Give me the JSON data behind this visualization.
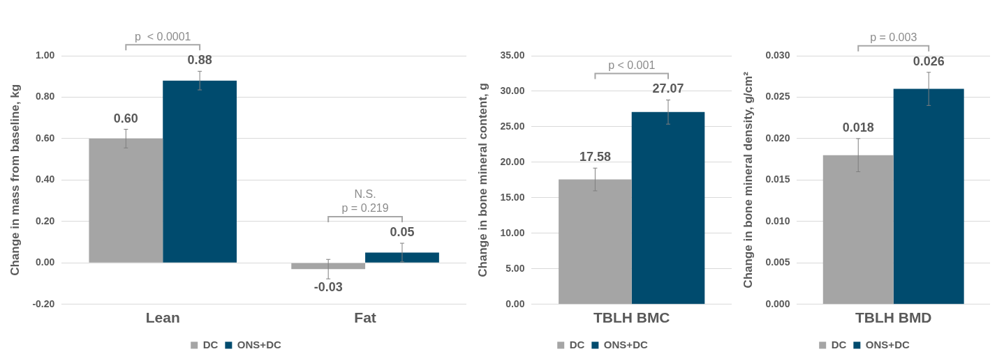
{
  "chart_data": [
    {
      "type": "bar",
      "categories": [
        "Lean",
        "Fat"
      ],
      "ylabel": "Change in mass from baseline, kg",
      "ylim": [
        -0.2,
        1.0
      ],
      "yticks": [
        {
          "value": -0.2,
          "label": "-0.20"
        },
        {
          "value": 0,
          "label": "0.00"
        },
        {
          "value": 0.2,
          "label": "0.20"
        },
        {
          "value": 0.4,
          "label": "0.40"
        },
        {
          "value": 0.6,
          "label": "0.60"
        },
        {
          "value": 0.8,
          "label": "0.80"
        },
        {
          "value": 1.0,
          "label": "1.00"
        }
      ],
      "grid": "y",
      "legend": "bottom",
      "series": [
        {
          "name": "DC",
          "color": "#a5a5a5",
          "values": [
            0.6,
            -0.03
          ],
          "errors": [
            0.045,
            0.047
          ],
          "value_labels": [
            "0.60",
            "-0.03"
          ]
        },
        {
          "name": "ONS+DC",
          "color": "#004b6e",
          "values": [
            0.88,
            0.05
          ],
          "errors": [
            0.045,
            0.045
          ],
          "value_labels": [
            "0.88",
            "0.05"
          ]
        }
      ],
      "annotations": [
        "p  < 0.0001",
        "N.S.",
        "p = 0.219"
      ]
    },
    {
      "type": "bar",
      "categories": [
        "TBLH BMC"
      ],
      "ylabel": "Change in bone mineral content, g",
      "ylim": [
        0,
        35
      ],
      "yticks": [
        {
          "value": 0,
          "label": "0.00"
        },
        {
          "value": 5,
          "label": "5.00"
        },
        {
          "value": 10,
          "label": "10.00"
        },
        {
          "value": 15,
          "label": "15.00"
        },
        {
          "value": 20,
          "label": "20.00"
        },
        {
          "value": 25,
          "label": "25.00"
        },
        {
          "value": 30,
          "label": "30.00"
        },
        {
          "value": 35,
          "label": "35.00"
        }
      ],
      "grid": "y",
      "legend": "bottom",
      "series": [
        {
          "name": "DC",
          "color": "#a5a5a5",
          "values": [
            17.58
          ],
          "errors": [
            1.6
          ],
          "value_labels": [
            "17.58"
          ]
        },
        {
          "name": "ONS+DC",
          "color": "#004b6e",
          "values": [
            27.07
          ],
          "errors": [
            1.7
          ],
          "value_labels": [
            "27.07"
          ]
        }
      ],
      "annotations": [
        "p < 0.001"
      ]
    },
    {
      "type": "bar",
      "categories": [
        "TBLH BMD"
      ],
      "ylabel": "Change in bone mineral density, g/cm²",
      "ylim": [
        0,
        0.03
      ],
      "yticks": [
        {
          "value": 0,
          "label": "0.000"
        },
        {
          "value": 0.005,
          "label": "0.005"
        },
        {
          "value": 0.01,
          "label": "0.010"
        },
        {
          "value": 0.015,
          "label": "0.015"
        },
        {
          "value": 0.02,
          "label": "0.020"
        },
        {
          "value": 0.025,
          "label": "0.025"
        },
        {
          "value": 0.03,
          "label": "0.030"
        }
      ],
      "grid": "y",
      "legend": "bottom",
      "series": [
        {
          "name": "DC",
          "color": "#a5a5a5",
          "values": [
            0.018
          ],
          "errors": [
            0.002
          ],
          "value_labels": [
            "0.018"
          ]
        },
        {
          "name": "ONS+DC",
          "color": "#004b6e",
          "values": [
            0.026
          ],
          "errors": [
            0.002
          ],
          "value_labels": [
            "0.026"
          ]
        }
      ],
      "annotations": [
        "p = 0.003"
      ]
    }
  ]
}
